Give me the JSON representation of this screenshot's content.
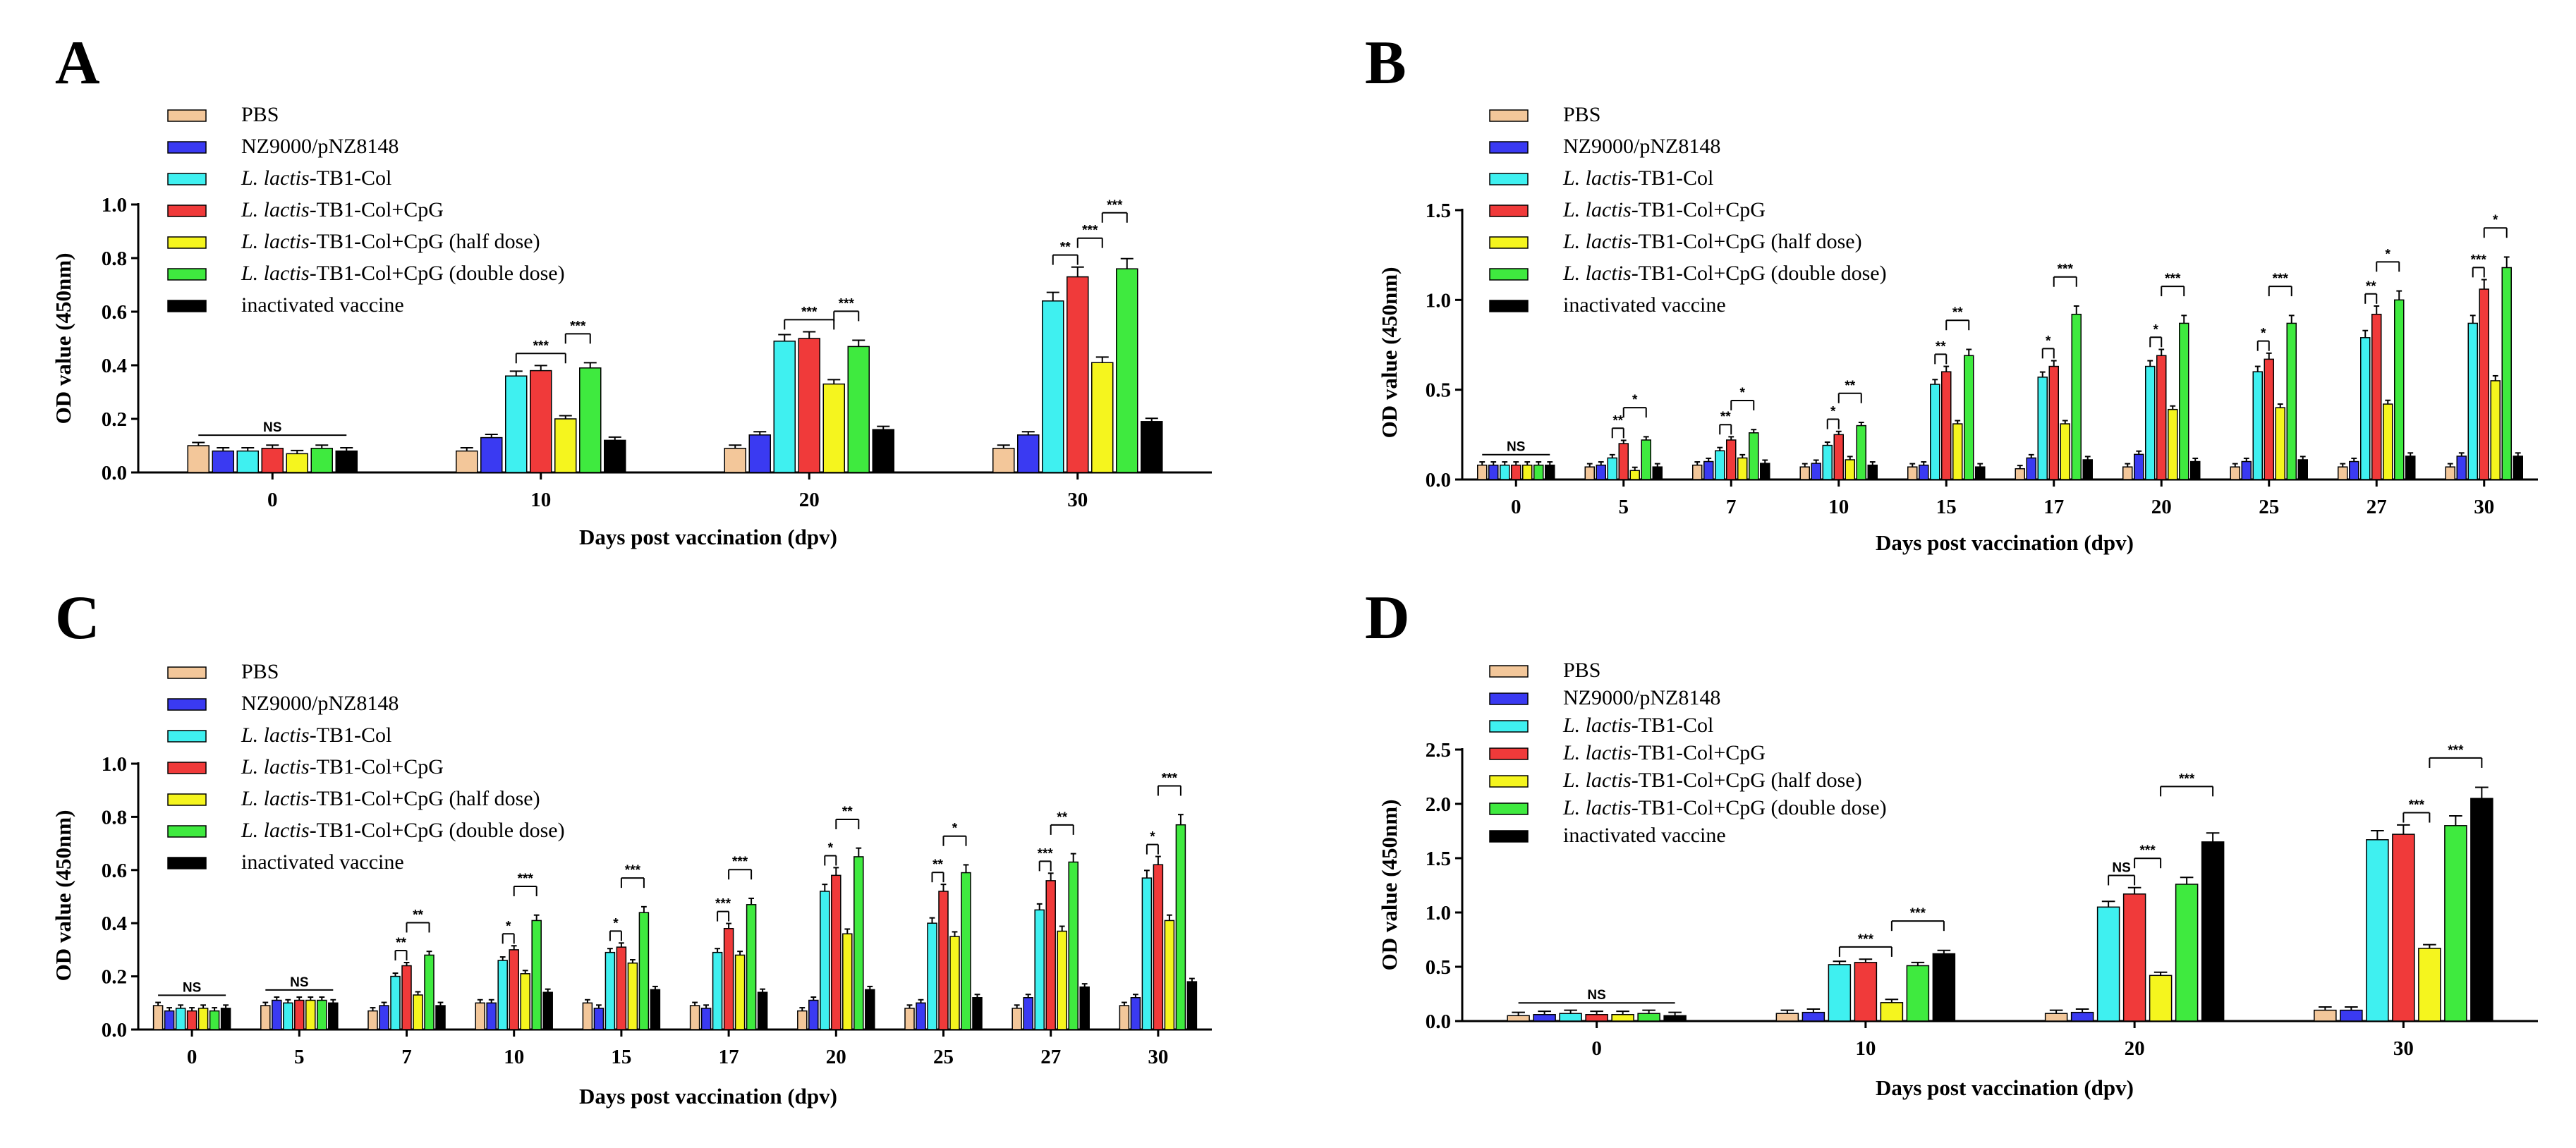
{
  "legend": {
    "entries": [
      {
        "label": "PBS",
        "italic": "",
        "rest": "PBS",
        "color": "#F3C79A"
      },
      {
        "label": "NZ9000/pNZ8148",
        "italic": "",
        "rest": "NZ9000/pNZ8148",
        "color": "#3A3AF2"
      },
      {
        "label": "L. lactis-TB1-Col",
        "italic": "L. lactis",
        "rest": "-TB1-Col",
        "color": "#3FF0F0"
      },
      {
        "label": "L. lactis-TB1-Col+CpG",
        "italic": "L. lactis",
        "rest": "-TB1-Col+CpG",
        "color": "#F03A3A"
      },
      {
        "label": "L. lactis-TB1-Col+CpG (half dose)",
        "italic": "L. lactis",
        "rest": "-TB1-Col+CpG (half dose)",
        "color": "#F5F51E"
      },
      {
        "label": "L. lactis-TB1-Col+CpG (double dose)",
        "italic": "L. lactis",
        "rest": "-TB1-Col+CpG (double dose)",
        "color": "#3FEA3F"
      },
      {
        "label": "inactivated vaccine",
        "italic": "",
        "rest": "inactivated vaccine",
        "color": "#000000"
      }
    ]
  },
  "chart_data": [
    {
      "panel": "A",
      "type": "bar",
      "xlabel": "Days post vaccination  (dpv)",
      "ylabel": "OD value (450nm)",
      "ylim": [
        0,
        1.0
      ],
      "yticks": [
        "0.0",
        "0.2",
        "0.4",
        "0.6",
        "0.8",
        "1.0"
      ],
      "categories": [
        "0",
        "10",
        "20",
        "30"
      ],
      "series": [
        {
          "name": "PBS",
          "values": [
            0.1,
            0.08,
            0.09,
            0.09
          ]
        },
        {
          "name": "NZ9000/pNZ8148",
          "values": [
            0.08,
            0.13,
            0.14,
            0.14
          ]
        },
        {
          "name": "L. lactis-TB1-Col",
          "values": [
            0.08,
            0.36,
            0.49,
            0.64
          ]
        },
        {
          "name": "L. lactis-TB1-Col+CpG",
          "values": [
            0.09,
            0.38,
            0.5,
            0.73
          ]
        },
        {
          "name": "L. lactis-TB1-Col+CpG (half dose)",
          "values": [
            0.07,
            0.2,
            0.33,
            0.41
          ]
        },
        {
          "name": "L. lactis-TB1-Col+CpG (double dose)",
          "values": [
            0.09,
            0.39,
            0.47,
            0.76
          ]
        },
        {
          "name": "inactivated vaccine",
          "values": [
            0.08,
            0.12,
            0.16,
            0.19
          ]
        }
      ],
      "annotations": [
        {
          "text": "NS",
          "cat": 0,
          "from": 0,
          "to": 6
        },
        {
          "text": "***",
          "cat": 1,
          "from": 2,
          "to": 4
        },
        {
          "text": "***",
          "cat": 1,
          "from": 4,
          "to": 5
        },
        {
          "text": "***",
          "cat": 2,
          "from": 2,
          "to": 4
        },
        {
          "text": "***",
          "cat": 2,
          "from": 4,
          "to": 5
        },
        {
          "text": "**",
          "cat": 3,
          "from": 2,
          "to": 3
        },
        {
          "text": "***",
          "cat": 3,
          "from": 3,
          "to": 4
        },
        {
          "text": "***",
          "cat": 3,
          "from": 4,
          "to": 5
        }
      ]
    },
    {
      "panel": "B",
      "type": "bar",
      "xlabel": "Days post vaccination  (dpv)",
      "ylabel": "OD value (450nm)",
      "ylim": [
        0,
        1.5
      ],
      "yticks": [
        "0.0",
        "0.5",
        "1.0",
        "1.5"
      ],
      "categories": [
        "0",
        "5",
        "7",
        "10",
        "15",
        "17",
        "20",
        "25",
        "27",
        "30"
      ],
      "series": [
        {
          "name": "PBS",
          "values": [
            0.08,
            0.07,
            0.08,
            0.07,
            0.07,
            0.06,
            0.07,
            0.07,
            0.07,
            0.07
          ]
        },
        {
          "name": "NZ9000/pNZ8148",
          "values": [
            0.08,
            0.08,
            0.1,
            0.09,
            0.08,
            0.12,
            0.14,
            0.1,
            0.1,
            0.13
          ]
        },
        {
          "name": "L. lactis-TB1-Col",
          "values": [
            0.08,
            0.12,
            0.16,
            0.19,
            0.53,
            0.57,
            0.63,
            0.6,
            0.79,
            0.87
          ]
        },
        {
          "name": "L. lactis-TB1-Col+CpG",
          "values": [
            0.08,
            0.2,
            0.22,
            0.25,
            0.6,
            0.63,
            0.69,
            0.67,
            0.92,
            1.06
          ]
        },
        {
          "name": "L. lactis-TB1-Col+CpG (half dose)",
          "values": [
            0.08,
            0.05,
            0.12,
            0.11,
            0.31,
            0.31,
            0.39,
            0.4,
            0.42,
            0.55
          ]
        },
        {
          "name": "L. lactis-TB1-Col+CpG (double dose)",
          "values": [
            0.08,
            0.22,
            0.26,
            0.3,
            0.69,
            0.92,
            0.87,
            0.87,
            1.0,
            1.18
          ]
        },
        {
          "name": "inactivated vaccine",
          "values": [
            0.08,
            0.07,
            0.09,
            0.08,
            0.07,
            0.11,
            0.1,
            0.11,
            0.13,
            0.13
          ]
        }
      ],
      "annotations": [
        {
          "text": "NS",
          "cat": 0,
          "from": 0,
          "to": 6
        },
        {
          "text": "**",
          "cat": 1,
          "from": 2,
          "to": 3
        },
        {
          "text": "*",
          "cat": 1,
          "from": 3,
          "to": 5
        },
        {
          "text": "**",
          "cat": 2,
          "from": 2,
          "to": 3
        },
        {
          "text": "*",
          "cat": 2,
          "from": 3,
          "to": 5
        },
        {
          "text": "*",
          "cat": 3,
          "from": 2,
          "to": 3
        },
        {
          "text": "**",
          "cat": 3,
          "from": 3,
          "to": 5
        },
        {
          "text": "**",
          "cat": 4,
          "from": 2,
          "to": 3
        },
        {
          "text": "**",
          "cat": 4,
          "from": 3,
          "to": 5
        },
        {
          "text": "*",
          "cat": 5,
          "from": 2,
          "to": 3
        },
        {
          "text": "***",
          "cat": 5,
          "from": 3,
          "to": 5
        },
        {
          "text": "*",
          "cat": 6,
          "from": 2,
          "to": 3
        },
        {
          "text": "***",
          "cat": 6,
          "from": 3,
          "to": 5
        },
        {
          "text": "*",
          "cat": 7,
          "from": 2,
          "to": 3
        },
        {
          "text": "***",
          "cat": 7,
          "from": 3,
          "to": 5
        },
        {
          "text": "**",
          "cat": 8,
          "from": 2,
          "to": 3
        },
        {
          "text": "*",
          "cat": 8,
          "from": 3,
          "to": 5
        },
        {
          "text": "***",
          "cat": 9,
          "from": 2,
          "to": 3
        },
        {
          "text": "*",
          "cat": 9,
          "from": 3,
          "to": 5
        }
      ]
    },
    {
      "panel": "C",
      "type": "bar",
      "xlabel": "Days post vaccination  (dpv)",
      "ylabel": "OD value (450nm)",
      "ylim": [
        0,
        1.0
      ],
      "yticks": [
        "0.0",
        "0.2",
        "0.4",
        "0.6",
        "0.8",
        "1.0"
      ],
      "categories": [
        "0",
        "5",
        "7",
        "10",
        "15",
        "17",
        "20",
        "25",
        "27",
        "30"
      ],
      "series": [
        {
          "name": "PBS",
          "values": [
            0.09,
            0.09,
            0.07,
            0.1,
            0.1,
            0.09,
            0.07,
            0.08,
            0.08,
            0.09
          ]
        },
        {
          "name": "NZ9000/pNZ8148",
          "values": [
            0.07,
            0.11,
            0.09,
            0.1,
            0.08,
            0.08,
            0.11,
            0.1,
            0.12,
            0.12
          ]
        },
        {
          "name": "L. lactis-TB1-Col",
          "values": [
            0.08,
            0.1,
            0.2,
            0.26,
            0.29,
            0.29,
            0.52,
            0.4,
            0.45,
            0.57
          ]
        },
        {
          "name": "L. lactis-TB1-Col+CpG",
          "values": [
            0.07,
            0.11,
            0.24,
            0.3,
            0.31,
            0.38,
            0.58,
            0.52,
            0.56,
            0.62
          ]
        },
        {
          "name": "L. lactis-TB1-Col+CpG (half dose)",
          "values": [
            0.08,
            0.11,
            0.13,
            0.21,
            0.25,
            0.28,
            0.36,
            0.35,
            0.37,
            0.41
          ]
        },
        {
          "name": "L. lactis-TB1-Col+CpG (double dose)",
          "values": [
            0.07,
            0.11,
            0.28,
            0.41,
            0.44,
            0.47,
            0.65,
            0.59,
            0.63,
            0.77
          ]
        },
        {
          "name": "inactivated vaccine",
          "values": [
            0.08,
            0.1,
            0.09,
            0.14,
            0.15,
            0.14,
            0.15,
            0.12,
            0.16,
            0.18
          ]
        }
      ],
      "annotations": [
        {
          "text": "NS",
          "cat": 0,
          "from": 0,
          "to": 6
        },
        {
          "text": "NS",
          "cat": 1,
          "from": 0,
          "to": 6
        },
        {
          "text": "**",
          "cat": 2,
          "from": 2,
          "to": 3
        },
        {
          "text": "**",
          "cat": 2,
          "from": 3,
          "to": 5
        },
        {
          "text": "*",
          "cat": 3,
          "from": 2,
          "to": 3
        },
        {
          "text": "***",
          "cat": 3,
          "from": 3,
          "to": 5
        },
        {
          "text": "*",
          "cat": 4,
          "from": 2,
          "to": 3
        },
        {
          "text": "***",
          "cat": 4,
          "from": 3,
          "to": 5
        },
        {
          "text": "***",
          "cat": 5,
          "from": 2,
          "to": 3
        },
        {
          "text": "***",
          "cat": 5,
          "from": 3,
          "to": 5
        },
        {
          "text": "*",
          "cat": 6,
          "from": 2,
          "to": 3
        },
        {
          "text": "**",
          "cat": 6,
          "from": 3,
          "to": 5
        },
        {
          "text": "**",
          "cat": 7,
          "from": 2,
          "to": 3
        },
        {
          "text": "*",
          "cat": 7,
          "from": 3,
          "to": 5
        },
        {
          "text": "***",
          "cat": 8,
          "from": 2,
          "to": 3
        },
        {
          "text": "**",
          "cat": 8,
          "from": 3,
          "to": 5
        },
        {
          "text": "*",
          "cat": 9,
          "from": 2,
          "to": 3
        },
        {
          "text": "***",
          "cat": 9,
          "from": 3,
          "to": 5
        }
      ]
    },
    {
      "panel": "D",
      "type": "bar",
      "xlabel": "Days post vaccination  (dpv)",
      "ylabel": "OD value (450nm)",
      "ylim": [
        0,
        2.5
      ],
      "yticks": [
        "0.0",
        "0.5",
        "1.0",
        "1.5",
        "2.0",
        "2.5"
      ],
      "categories": [
        "0",
        "10",
        "20",
        "30"
      ],
      "series": [
        {
          "name": "PBS",
          "values": [
            0.05,
            0.07,
            0.07,
            0.1
          ]
        },
        {
          "name": "NZ9000/pNZ8148",
          "values": [
            0.06,
            0.08,
            0.08,
            0.1
          ]
        },
        {
          "name": "L. lactis-TB1-Col",
          "values": [
            0.07,
            0.52,
            1.05,
            1.67
          ]
        },
        {
          "name": "L. lactis-TB1-Col+CpG",
          "values": [
            0.06,
            0.54,
            1.17,
            1.72
          ]
        },
        {
          "name": "L. lactis-TB1-Col+CpG (half dose)",
          "values": [
            0.06,
            0.17,
            0.42,
            0.67
          ]
        },
        {
          "name": "L. lactis-TB1-Col+CpG (double dose)",
          "values": [
            0.07,
            0.51,
            1.26,
            1.8
          ]
        },
        {
          "name": "inactivated vaccine",
          "values": [
            0.05,
            0.62,
            1.65,
            2.05
          ]
        }
      ],
      "annotations": [
        {
          "text": "NS",
          "cat": 0,
          "from": 0,
          "to": 6
        },
        {
          "text": "***",
          "cat": 1,
          "from": 2,
          "to": 4
        },
        {
          "text": "***",
          "cat": 1,
          "from": 4,
          "to": 6
        },
        {
          "text": "NS",
          "cat": 2,
          "from": 2,
          "to": 3
        },
        {
          "text": "***",
          "cat": 2,
          "from": 3,
          "to": 4
        },
        {
          "text": "***",
          "cat": 2,
          "from": 4,
          "to": 6
        },
        {
          "text": "***",
          "cat": 3,
          "from": 3,
          "to": 4
        },
        {
          "text": "***",
          "cat": 3,
          "from": 4,
          "to": 6
        }
      ]
    }
  ]
}
